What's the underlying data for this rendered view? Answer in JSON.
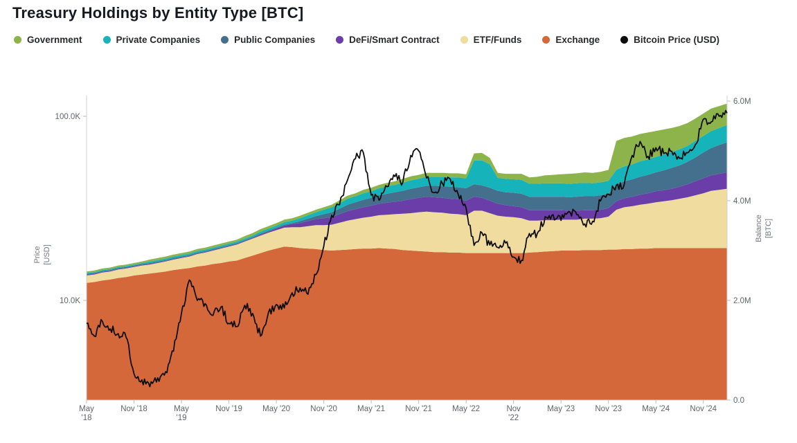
{
  "title": "Treasury Holdings by Entity Type [BTC]",
  "legend": {
    "items": [
      {
        "label": "Government",
        "color": "#8db44a"
      },
      {
        "label": "Private Companies",
        "color": "#16b3bb"
      },
      {
        "label": "Public Companies",
        "color": "#44708e"
      },
      {
        "label": "DeFi/Smart Contract",
        "color": "#6a3da8"
      },
      {
        "label": "ETF/Funds",
        "color": "#f0dc9e"
      },
      {
        "label": "Exchange",
        "color": "#d5683b"
      },
      {
        "label": "Bitcoin Price (USD)",
        "color": "#0d0d0d"
      }
    ]
  },
  "axes": {
    "left": {
      "title_line1": "Price",
      "title_line2": "[USD]",
      "scale": "log",
      "ticks": [
        {
          "label": "100.0K",
          "value": 100000
        },
        {
          "label": "10.0K",
          "value": 10000
        }
      ]
    },
    "right": {
      "title_line1": "Balance",
      "title_line2": "[BTC]",
      "scale": "linear",
      "ticks": [
        {
          "label": "6.0M",
          "value": 6
        },
        {
          "label": "4.0M",
          "value": 4
        },
        {
          "label": "2.0M",
          "value": 2
        },
        {
          "label": "0.0",
          "value": 0
        }
      ]
    },
    "x": {
      "ticks": [
        {
          "text": "May '18",
          "month": "2018-05",
          "two_line": true
        },
        {
          "text": "Nov '18",
          "month": "2018-11",
          "two_line": false
        },
        {
          "text": "May '19",
          "month": "2019-05",
          "two_line": true
        },
        {
          "text": "Nov '19",
          "month": "2019-11",
          "two_line": false
        },
        {
          "text": "May '20",
          "month": "2020-05",
          "two_line": false
        },
        {
          "text": "Nov '20",
          "month": "2020-11",
          "two_line": false
        },
        {
          "text": "May '21",
          "month": "2021-05",
          "two_line": false
        },
        {
          "text": "Nov '21",
          "month": "2021-11",
          "two_line": false
        },
        {
          "text": "May '22",
          "month": "2022-05",
          "two_line": false
        },
        {
          "text": "Nov '22",
          "month": "2022-11",
          "two_line": true
        },
        {
          "text": "May '23",
          "month": "2023-05",
          "two_line": false
        },
        {
          "text": "Nov '23",
          "month": "2023-11",
          "two_line": false
        },
        {
          "text": "May '24",
          "month": "2024-05",
          "two_line": false
        },
        {
          "text": "Nov '24",
          "month": "2024-11",
          "two_line": false
        }
      ]
    }
  },
  "chart_data": {
    "type": "area",
    "stacking": "stacked",
    "title": "Treasury Holdings by Entity Type [BTC]",
    "grid": false,
    "legend_position": "top",
    "right_axis_range_m_btc": [
      0,
      6
    ],
    "left_axis_log_range_usd": [
      3000,
      140000
    ],
    "x_months": [
      "2018-05",
      "2018-06",
      "2018-07",
      "2018-08",
      "2018-09",
      "2018-10",
      "2018-11",
      "2018-12",
      "2019-01",
      "2019-02",
      "2019-03",
      "2019-04",
      "2019-05",
      "2019-06",
      "2019-07",
      "2019-08",
      "2019-09",
      "2019-10",
      "2019-11",
      "2019-12",
      "2020-01",
      "2020-02",
      "2020-03",
      "2020-04",
      "2020-05",
      "2020-06",
      "2020-07",
      "2020-08",
      "2020-09",
      "2020-10",
      "2020-11",
      "2020-12",
      "2021-01",
      "2021-02",
      "2021-03",
      "2021-04",
      "2021-05",
      "2021-06",
      "2021-07",
      "2021-08",
      "2021-09",
      "2021-10",
      "2021-11",
      "2021-12",
      "2022-01",
      "2022-02",
      "2022-03",
      "2022-04",
      "2022-05",
      "2022-06",
      "2022-07",
      "2022-08",
      "2022-09",
      "2022-10",
      "2022-11",
      "2022-12",
      "2023-01",
      "2023-02",
      "2023-03",
      "2023-04",
      "2023-05",
      "2023-06",
      "2023-07",
      "2023-08",
      "2023-09",
      "2023-10",
      "2023-11",
      "2023-12",
      "2024-01",
      "2024-02",
      "2024-03",
      "2024-04",
      "2024-05",
      "2024-06",
      "2024-07",
      "2024-08",
      "2024-09",
      "2024-10",
      "2024-11",
      "2024-12",
      "2025-01",
      "2025-02"
    ],
    "series": [
      {
        "name": "Exchange",
        "color": "#d5683b",
        "unit": "M BTC",
        "values": [
          2.35,
          2.37,
          2.4,
          2.42,
          2.45,
          2.47,
          2.5,
          2.52,
          2.54,
          2.56,
          2.58,
          2.61,
          2.63,
          2.65,
          2.68,
          2.7,
          2.73,
          2.75,
          2.78,
          2.8,
          2.85,
          2.9,
          2.95,
          3.0,
          3.04,
          3.08,
          3.07,
          3.05,
          3.04,
          3.03,
          3.01,
          3.0,
          3.01,
          3.02,
          3.03,
          3.04,
          3.04,
          3.05,
          3.04,
          3.03,
          3.01,
          3.0,
          2.99,
          2.98,
          2.97,
          2.97,
          2.96,
          2.96,
          2.95,
          2.95,
          2.95,
          2.95,
          2.95,
          2.95,
          2.95,
          2.95,
          2.96,
          2.97,
          2.98,
          2.99,
          3.0,
          3.0,
          3.0,
          3.01,
          3.01,
          3.01,
          3.02,
          3.02,
          3.03,
          3.03,
          3.04,
          3.04,
          3.05,
          3.05,
          3.05,
          3.05,
          3.05,
          3.05,
          3.05,
          3.05,
          3.05,
          3.05
        ]
      },
      {
        "name": "ETF/Funds",
        "color": "#f0dc9e",
        "unit": "M BTC",
        "values": [
          0.15,
          0.15,
          0.16,
          0.16,
          0.17,
          0.17,
          0.17,
          0.18,
          0.18,
          0.19,
          0.2,
          0.21,
          0.22,
          0.23,
          0.25,
          0.26,
          0.27,
          0.29,
          0.3,
          0.32,
          0.33,
          0.34,
          0.35,
          0.36,
          0.37,
          0.38,
          0.4,
          0.42,
          0.45,
          0.48,
          0.5,
          0.52,
          0.55,
          0.58,
          0.6,
          0.62,
          0.64,
          0.66,
          0.68,
          0.7,
          0.73,
          0.75,
          0.78,
          0.8,
          0.8,
          0.79,
          0.78,
          0.77,
          0.76,
          0.85,
          0.85,
          0.8,
          0.75,
          0.73,
          0.72,
          0.7,
          0.64,
          0.63,
          0.63,
          0.62,
          0.62,
          0.62,
          0.62,
          0.63,
          0.63,
          0.64,
          0.66,
          0.8,
          0.84,
          0.86,
          0.88,
          0.9,
          0.92,
          0.94,
          0.96,
          0.99,
          1.02,
          1.06,
          1.1,
          1.15,
          1.17,
          1.19
        ]
      },
      {
        "name": "DeFi/Smart Contract",
        "color": "#6a3da8",
        "unit": "M BTC",
        "values": [
          0.01,
          0.01,
          0.01,
          0.01,
          0.01,
          0.01,
          0.01,
          0.01,
          0.01,
          0.01,
          0.01,
          0.01,
          0.01,
          0.01,
          0.01,
          0.01,
          0.01,
          0.01,
          0.01,
          0.01,
          0.01,
          0.01,
          0.02,
          0.02,
          0.03,
          0.04,
          0.06,
          0.08,
          0.1,
          0.12,
          0.14,
          0.15,
          0.17,
          0.19,
          0.2,
          0.21,
          0.22,
          0.23,
          0.24,
          0.25,
          0.26,
          0.28,
          0.29,
          0.3,
          0.3,
          0.3,
          0.3,
          0.3,
          0.29,
          0.28,
          0.26,
          0.25,
          0.24,
          0.23,
          0.22,
          0.22,
          0.21,
          0.21,
          0.2,
          0.2,
          0.19,
          0.18,
          0.18,
          0.17,
          0.17,
          0.17,
          0.17,
          0.17,
          0.18,
          0.19,
          0.2,
          0.21,
          0.22,
          0.22,
          0.23,
          0.24,
          0.26,
          0.28,
          0.3,
          0.31,
          0.32,
          0.33
        ]
      },
      {
        "name": "Public Companies",
        "color": "#44708e",
        "unit": "M BTC",
        "values": [
          0.02,
          0.02,
          0.02,
          0.02,
          0.02,
          0.02,
          0.02,
          0.02,
          0.02,
          0.02,
          0.02,
          0.02,
          0.02,
          0.02,
          0.02,
          0.02,
          0.02,
          0.02,
          0.02,
          0.02,
          0.02,
          0.02,
          0.02,
          0.02,
          0.02,
          0.02,
          0.02,
          0.04,
          0.05,
          0.06,
          0.08,
          0.1,
          0.11,
          0.13,
          0.14,
          0.15,
          0.16,
          0.17,
          0.18,
          0.19,
          0.2,
          0.21,
          0.21,
          0.22,
          0.23,
          0.23,
          0.24,
          0.24,
          0.25,
          0.25,
          0.25,
          0.26,
          0.26,
          0.26,
          0.27,
          0.27,
          0.27,
          0.27,
          0.27,
          0.27,
          0.27,
          0.27,
          0.28,
          0.28,
          0.28,
          0.29,
          0.29,
          0.33,
          0.34,
          0.35,
          0.36,
          0.37,
          0.38,
          0.4,
          0.42,
          0.43,
          0.45,
          0.48,
          0.52,
          0.55,
          0.58,
          0.6
        ]
      },
      {
        "name": "Private Companies",
        "color": "#16b3bb",
        "unit": "M BTC",
        "values": [
          0.02,
          0.02,
          0.02,
          0.02,
          0.02,
          0.02,
          0.02,
          0.02,
          0.03,
          0.03,
          0.03,
          0.03,
          0.03,
          0.03,
          0.03,
          0.03,
          0.03,
          0.03,
          0.03,
          0.03,
          0.03,
          0.03,
          0.04,
          0.04,
          0.04,
          0.05,
          0.05,
          0.06,
          0.07,
          0.08,
          0.09,
          0.1,
          0.11,
          0.12,
          0.12,
          0.13,
          0.13,
          0.14,
          0.15,
          0.15,
          0.16,
          0.17,
          0.17,
          0.18,
          0.18,
          0.19,
          0.19,
          0.2,
          0.2,
          0.48,
          0.5,
          0.47,
          0.26,
          0.27,
          0.27,
          0.28,
          0.26,
          0.26,
          0.27,
          0.27,
          0.27,
          0.27,
          0.27,
          0.27,
          0.26,
          0.26,
          0.26,
          0.3,
          0.3,
          0.3,
          0.31,
          0.31,
          0.31,
          0.32,
          0.32,
          0.32,
          0.32,
          0.33,
          0.33,
          0.34,
          0.34,
          0.35
        ]
      },
      {
        "name": "Government",
        "color": "#8db44a",
        "unit": "M BTC",
        "values": [
          0.03,
          0.03,
          0.03,
          0.03,
          0.03,
          0.03,
          0.03,
          0.03,
          0.04,
          0.04,
          0.04,
          0.04,
          0.04,
          0.04,
          0.04,
          0.04,
          0.04,
          0.04,
          0.04,
          0.04,
          0.05,
          0.05,
          0.05,
          0.05,
          0.05,
          0.05,
          0.05,
          0.05,
          0.05,
          0.05,
          0.05,
          0.05,
          0.06,
          0.06,
          0.06,
          0.07,
          0.07,
          0.07,
          0.07,
          0.07,
          0.08,
          0.08,
          0.08,
          0.08,
          0.08,
          0.08,
          0.08,
          0.08,
          0.08,
          0.14,
          0.15,
          0.13,
          0.1,
          0.1,
          0.11,
          0.12,
          0.13,
          0.14,
          0.16,
          0.17,
          0.18,
          0.2,
          0.2,
          0.21,
          0.21,
          0.21,
          0.22,
          0.58,
          0.57,
          0.56,
          0.55,
          0.54,
          0.52,
          0.5,
          0.48,
          0.47,
          0.46,
          0.45,
          0.45,
          0.45,
          0.44,
          0.43
        ]
      }
    ],
    "price_line": {
      "name": "Bitcoin Price (USD)",
      "color": "#0d0d0d",
      "axis": "left",
      "unit": "USD",
      "values": [
        7500,
        6400,
        7700,
        7000,
        6600,
        6300,
        4000,
        3700,
        3400,
        3800,
        4100,
        5300,
        8500,
        12900,
        10000,
        9600,
        8300,
        9200,
        7500,
        7200,
        9400,
        8500,
        6400,
        8600,
        9500,
        9100,
        11000,
        11700,
        10800,
        13800,
        19700,
        29000,
        33100,
        45100,
        58800,
        63500,
        37300,
        35000,
        41500,
        47100,
        43800,
        61300,
        65000,
        46200,
        38500,
        43200,
        45500,
        37700,
        31800,
        19900,
        23300,
        20000,
        19400,
        20500,
        17200,
        16500,
        23100,
        23100,
        28500,
        29200,
        27200,
        30500,
        29200,
        26000,
        26900,
        34700,
        37700,
        42300,
        42600,
        61200,
        73000,
        60600,
        67500,
        62700,
        64600,
        59100,
        63300,
        70200,
        96400,
        93400,
        100000,
        104000
      ]
    }
  }
}
